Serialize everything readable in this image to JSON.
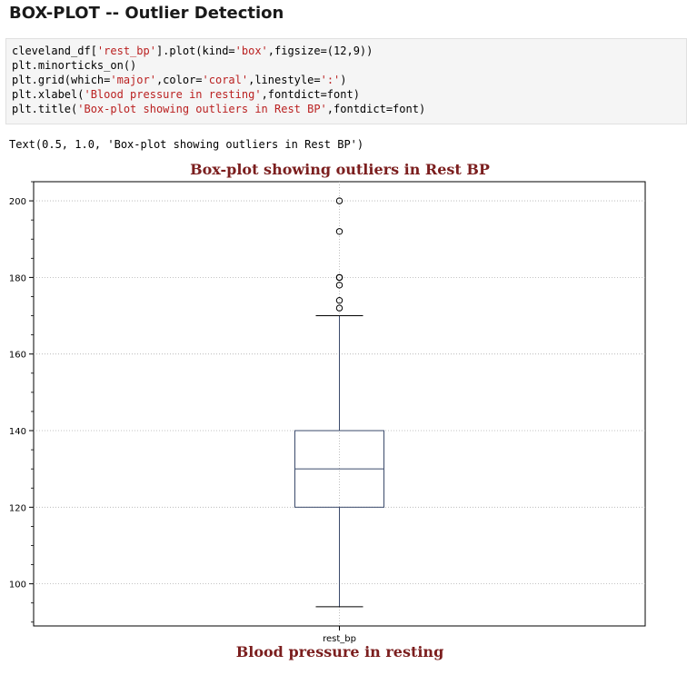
{
  "heading": "BOX-PLOT -- Outlier Detection",
  "code": {
    "lines": [
      [
        {
          "t": "cleveland_df["
        },
        {
          "t": "'rest_bp'",
          "s": true
        },
        {
          "t": "].plot(kind="
        },
        {
          "t": "'box'",
          "s": true
        },
        {
          "t": ",figsize=(12,9))"
        }
      ],
      [
        {
          "t": "plt.minorticks_on()"
        }
      ],
      [
        {
          "t": "plt.grid(which="
        },
        {
          "t": "'major'",
          "s": true
        },
        {
          "t": ",color="
        },
        {
          "t": "'coral'",
          "s": true
        },
        {
          "t": ",linestyle="
        },
        {
          "t": "':'",
          "s": true
        },
        {
          "t": ")"
        }
      ],
      [
        {
          "t": "plt.xlabel("
        },
        {
          "t": "'Blood pressure in resting'",
          "s": true
        },
        {
          "t": ",fontdict=font)"
        }
      ],
      [
        {
          "t": "plt.title("
        },
        {
          "t": "'Box-plot showing outliers in Rest BP'",
          "s": true
        },
        {
          "t": ",fontdict=font)"
        }
      ]
    ]
  },
  "output_text": "Text(0.5, 1.0, 'Box-plot showing outliers in Rest BP')",
  "chart_data": {
    "type": "box",
    "title": "Box-plot showing outliers in Rest BP",
    "xlabel": "Blood pressure in resting",
    "ylabel": "",
    "categories": [
      "rest_bp"
    ],
    "box": {
      "whisker_low": 94,
      "q1": 120,
      "median": 130,
      "q3": 140,
      "whisker_high": 170
    },
    "outliers": [
      172,
      174,
      178,
      180,
      180,
      192,
      200
    ],
    "ylim": [
      89,
      205
    ],
    "yticks": [
      100,
      120,
      140,
      160,
      180,
      200
    ],
    "grid": true,
    "colors": {
      "box": "#3b4a6b",
      "title": "#7b1e1e",
      "grid": "#b0b0b0"
    }
  }
}
